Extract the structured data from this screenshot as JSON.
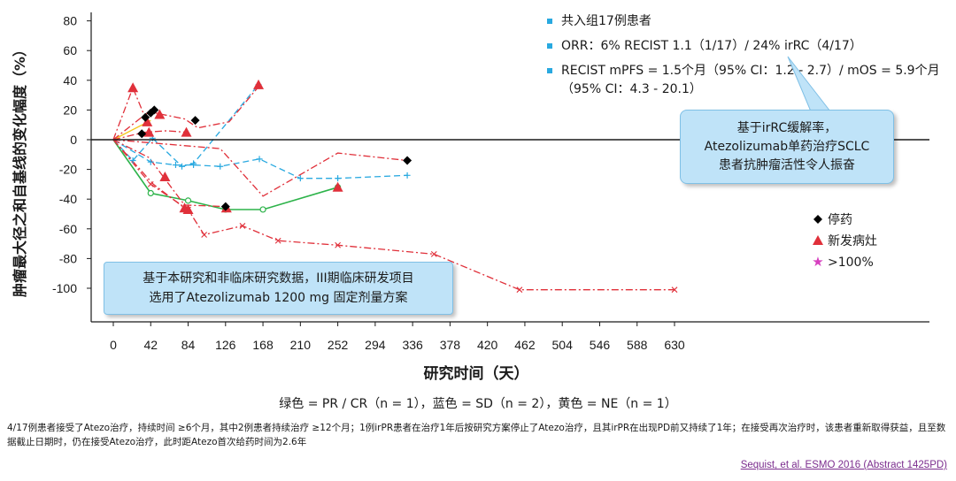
{
  "chart_data": {
    "type": "line",
    "title": "",
    "xlabel": "研究时间（天）",
    "ylabel": "肿瘤最大径之和自基线的变化幅度（%）",
    "xlim": [
      -10,
      650
    ],
    "ylim": [
      -115,
      82
    ],
    "x_ticks": [
      0,
      42,
      84,
      126,
      168,
      210,
      252,
      294,
      336,
      378,
      420,
      462,
      504,
      546,
      588,
      630
    ],
    "y_ticks": [
      80,
      60,
      40,
      20,
      0,
      -20,
      -40,
      -60,
      -80,
      -100
    ],
    "series": [
      {
        "name": "PR/CR-1",
        "color": "#2db34a",
        "dash": "solid",
        "marker": "circle",
        "x": [
          0,
          42,
          84,
          126,
          168,
          252
        ],
        "y": [
          0,
          -36,
          -41,
          -47,
          -47,
          -32
        ]
      },
      {
        "name": "SD-1",
        "color": "#29a9e0",
        "dash": "dash",
        "marker": "plus",
        "x": [
          0,
          42,
          70,
          90,
          120,
          164,
          210,
          252,
          330
        ],
        "y": [
          0,
          -15,
          -17,
          -17,
          -18,
          -13,
          -26,
          -26,
          -24
        ]
      },
      {
        "name": "SD-2",
        "color": "#29a9e0",
        "dash": "dash",
        "marker": "plus",
        "x": [
          0,
          22,
          44,
          77,
          90,
          163
        ],
        "y": [
          0,
          -14,
          1,
          -18,
          -16,
          37
        ]
      },
      {
        "name": "NE-1",
        "color": "#f5c518",
        "dash": "solid",
        "marker": "none",
        "x": [
          0,
          42
        ],
        "y": [
          0,
          13
        ]
      },
      {
        "name": "PD-1",
        "color": "#e0303a",
        "dash": "dashdot",
        "marker": "x",
        "x": [
          0,
          42,
          84,
          102,
          145,
          185,
          252,
          360,
          456,
          630
        ],
        "y": [
          0,
          -30,
          -47,
          -64,
          -58,
          -68,
          -71,
          -77,
          -101,
          -101
        ]
      },
      {
        "name": "PD-2",
        "color": "#e0303a",
        "dash": "dashdot",
        "marker": "none",
        "x": [
          0,
          22,
          35,
          42
        ],
        "y": [
          0,
          35,
          16,
          20
        ]
      },
      {
        "name": "PD-3",
        "color": "#e0303a",
        "dash": "dashdot",
        "marker": "none",
        "x": [
          0,
          40,
          55,
          80,
          95,
          130,
          165
        ],
        "y": [
          0,
          19,
          17,
          14,
          8,
          12,
          37
        ]
      },
      {
        "name": "PD-4",
        "color": "#e0303a",
        "dash": "dashdot",
        "marker": "none",
        "x": [
          0,
          35,
          60,
          82
        ],
        "y": [
          0,
          5,
          6,
          5
        ]
      },
      {
        "name": "PD-5",
        "color": "#e0303a",
        "dash": "dashdot",
        "marker": "none",
        "x": [
          0,
          40,
          55,
          80,
          126
        ],
        "y": [
          0,
          -12,
          -24,
          -44,
          -45
        ]
      },
      {
        "name": "PD-6",
        "color": "#e0303a",
        "dash": "dashdot",
        "marker": "none",
        "x": [
          0,
          120,
          168,
          252,
          330
        ],
        "y": [
          0,
          -6,
          -38,
          -9,
          -14
        ]
      },
      {
        "name": "PD-7",
        "color": "#e0303a",
        "dash": "dashdot",
        "marker": "none",
        "x": [
          0,
          45,
          80
        ],
        "y": [
          0,
          -30,
          -46
        ]
      }
    ],
    "discontinued_points": [
      {
        "x": 32,
        "y": 4
      },
      {
        "x": 36,
        "y": 15
      },
      {
        "x": 42,
        "y": 18
      },
      {
        "x": 46,
        "y": 20
      },
      {
        "x": 92,
        "y": 13
      },
      {
        "x": 126,
        "y": -45
      },
      {
        "x": 330,
        "y": -14
      }
    ],
    "new_lesion_points": [
      {
        "x": 22,
        "y": 35
      },
      {
        "x": 38,
        "y": 12
      },
      {
        "x": 40,
        "y": 5
      },
      {
        "x": 52,
        "y": 17
      },
      {
        "x": 82,
        "y": 5
      },
      {
        "x": 163,
        "y": 37
      },
      {
        "x": 58,
        "y": -25
      },
      {
        "x": 80,
        "y": -46
      },
      {
        "x": 84,
        "y": -47
      },
      {
        "x": 127,
        "y": -46
      },
      {
        "x": 252,
        "y": -32
      }
    ],
    "legend": [
      {
        "label": "停药",
        "marker": "diamond",
        "color": "#000000"
      },
      {
        "label": "新发病灶",
        "marker": "triangle",
        "color": "#e0303a"
      },
      {
        "label": ">100%",
        "marker": "star",
        "color": "#d63fbf"
      }
    ],
    "color_note": "绿色 = PR / CR（n = 1），蓝色 = SD（n = 2），黄色 = NE（n = 1）"
  },
  "info_items": [
    "共入组17例患者",
    "ORR：6% RECIST 1.1（1/17）/ 24% irRC（4/17）",
    "RECIST mPFS = 1.5个月（95% CI：1.2 - 2.7）/ mOS = 5.9个月（95% CI：4.3 - 20.1）"
  ],
  "callout_right": [
    "基于irRC缓解率，",
    "Atezolizumab单药治疗SCLC",
    "患者抗肿瘤活性令人振奋"
  ],
  "callout_left": [
    "基于本研究和非临床研究数据，III期临床研发项目",
    "选用了Atezolizumab 1200 mg 固定剂量方案"
  ],
  "footnote": "4/17例患者接受了Atezo治疗，持续时间 ≥6个月，其中2例患者持续治疗 ≥12个月；1例irPR患者在治疗1年后按研究方案停止了Atezo治疗，且其irPR在出现PD前又持续了1年；在接受再次治疗时，该患者重新取得获益，且至数据截止日期时，仍在接受Atezo治疗，此时距Atezo首次给药时间为2.6年",
  "source": "Sequist, et al. ESMO 2016 (Abstract 1425PD)"
}
